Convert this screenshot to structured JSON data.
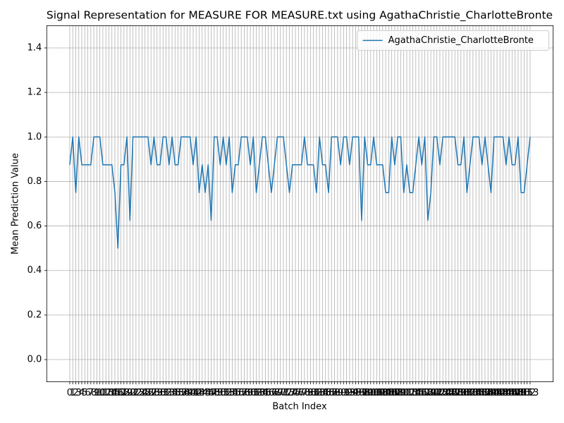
{
  "chart_data": {
    "type": "line",
    "title": "Signal Representation for MEASURE FOR MEASURE.txt using AgathaChristie_CharlotteBronte",
    "xlabel": "Batch Index",
    "ylabel": "Mean Prediction Value",
    "x": [
      0,
      1,
      2,
      3,
      4,
      5,
      6,
      7,
      8,
      9,
      10,
      11,
      12,
      13,
      14,
      15,
      16,
      17,
      18,
      19,
      20,
      21,
      22,
      23,
      24,
      25,
      26,
      27,
      28,
      29,
      30,
      31,
      32,
      33,
      34,
      35,
      36,
      37,
      38,
      39,
      40,
      41,
      42,
      43,
      44,
      45,
      46,
      47,
      48,
      49,
      50,
      51,
      52,
      53,
      54,
      55,
      56,
      57,
      58,
      59,
      60,
      61,
      62,
      63,
      64,
      65,
      66,
      67,
      68,
      69,
      70,
      71,
      72,
      73,
      74,
      75,
      76,
      77,
      78,
      79,
      80,
      81,
      82,
      83,
      84,
      85,
      86,
      87,
      88,
      89,
      90,
      91,
      92,
      93,
      94,
      95,
      96,
      97,
      98,
      99,
      100,
      101,
      102,
      103,
      104,
      105,
      106,
      107,
      108,
      109,
      110,
      111,
      112,
      113,
      114,
      115,
      116,
      117,
      118,
      119,
      120,
      121,
      122,
      123,
      124,
      125,
      126,
      127,
      128,
      129,
      130,
      131,
      132,
      133,
      134,
      135,
      136,
      137,
      138,
      139,
      140,
      141,
      142,
      143,
      144,
      145,
      146,
      147,
      148,
      149,
      150,
      151,
      152,
      153
    ],
    "series": [
      {
        "name": "AgathaChristie_CharlotteBronte",
        "color": "#1f77b4",
        "values": [
          0.875,
          1,
          0.75,
          1,
          0.875,
          0.875,
          0.875,
          0.875,
          1,
          1,
          1,
          0.875,
          0.875,
          0.875,
          0.875,
          0.75,
          0.5,
          0.875,
          0.875,
          1,
          0.625,
          1,
          1,
          1,
          1,
          1,
          1,
          0.875,
          1,
          0.875,
          0.875,
          1,
          1,
          0.875,
          1,
          0.875,
          0.875,
          1,
          1,
          1,
          1,
          0.875,
          1,
          0.75,
          0.875,
          0.75,
          0.875,
          0.625,
          1,
          1,
          0.875,
          1,
          0.875,
          1,
          0.75,
          0.875,
          0.875,
          1,
          1,
          1,
          0.875,
          1,
          0.75,
          0.875,
          1,
          1,
          0.875,
          0.75,
          0.875,
          1,
          1,
          1,
          0.875,
          0.75,
          0.875,
          0.875,
          0.875,
          0.875,
          1,
          0.875,
          0.875,
          0.875,
          0.75,
          1,
          0.875,
          0.875,
          0.75,
          1,
          1,
          1,
          0.875,
          1,
          1,
          0.875,
          1,
          1,
          1,
          0.625,
          1,
          0.875,
          0.875,
          1,
          0.875,
          0.875,
          0.875,
          0.75,
          0.75,
          1,
          0.875,
          1,
          1,
          0.75,
          0.875,
          0.75,
          0.75,
          0.875,
          1,
          0.875,
          1,
          0.625,
          0.75,
          1,
          1,
          0.875,
          1,
          1,
          1,
          1,
          1,
          0.875,
          0.875,
          1,
          0.75,
          0.875,
          1,
          1,
          1,
          0.875,
          1,
          0.875,
          0.75,
          1,
          1,
          1,
          1,
          0.875,
          1,
          0.875,
          0.875,
          1,
          0.75,
          0.75,
          0.875,
          1
        ]
      }
    ],
    "xlim": [
      -7.65,
      160.65
    ],
    "xticks": [
      0,
      1,
      2,
      3,
      4,
      5,
      6,
      7,
      8,
      9,
      10,
      11,
      12,
      13,
      14,
      15,
      16,
      17,
      18,
      19,
      20,
      21,
      22,
      23,
      24,
      25,
      26,
      27,
      28,
      29,
      30,
      31,
      32,
      33,
      34,
      35,
      36,
      37,
      38,
      39,
      40,
      41,
      42,
      43,
      44,
      45,
      46,
      47,
      48,
      49,
      50,
      51,
      52,
      53,
      54,
      55,
      56,
      57,
      58,
      59,
      60,
      61,
      62,
      63,
      64,
      65,
      66,
      67,
      68,
      69,
      70,
      71,
      72,
      73,
      74,
      75,
      76,
      77,
      78,
      79,
      80,
      81,
      82,
      83,
      84,
      85,
      86,
      87,
      88,
      89,
      90,
      91,
      92,
      93,
      94,
      95,
      96,
      97,
      98,
      99,
      100,
      101,
      102,
      103,
      104,
      105,
      106,
      107,
      108,
      109,
      110,
      111,
      112,
      113,
      114,
      115,
      116,
      117,
      118,
      119,
      120,
      121,
      122,
      123,
      124,
      125,
      126,
      127,
      128,
      129,
      130,
      131,
      132,
      133,
      134,
      135,
      136,
      137,
      138,
      139,
      140,
      141,
      142,
      143,
      144,
      145,
      146,
      147,
      148,
      149,
      150,
      151,
      152,
      153
    ],
    "ylim": [
      -0.1,
      1.5
    ],
    "yticks": [
      {
        "value": 0,
        "label": "0.0"
      },
      0.2,
      0.4,
      0.6,
      0.8,
      {
        "value": 1,
        "label": "1.0"
      },
      1.2,
      1.4
    ],
    "grid": true,
    "legend": "upper right"
  }
}
